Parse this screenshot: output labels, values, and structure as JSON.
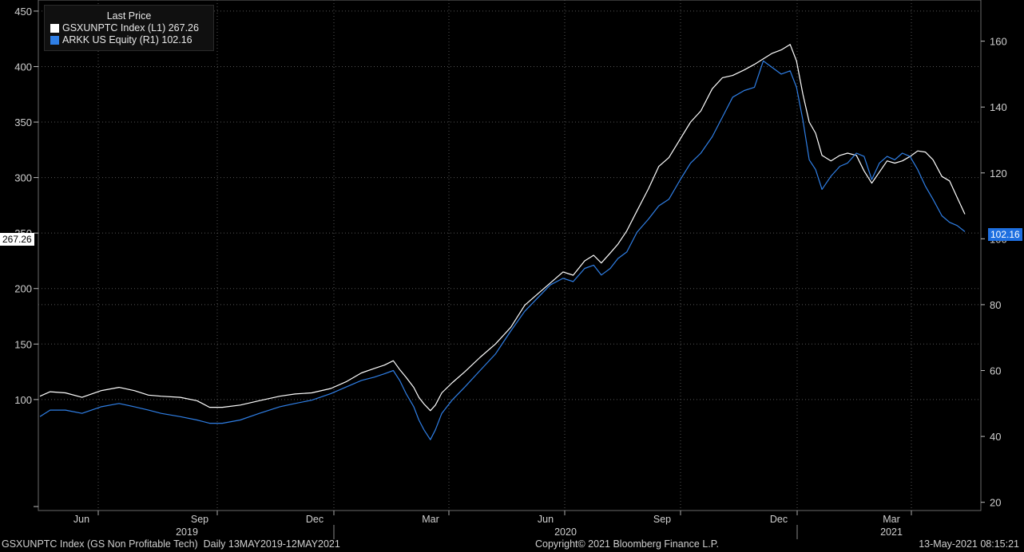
{
  "chart_data": {
    "type": "line",
    "title": "Last Price",
    "legend": [
      {
        "ticker": "GSXUNPTC Index",
        "axis": "(L1)",
        "last": "267.26",
        "color": "#ffffff"
      },
      {
        "ticker": "ARKK US Equity",
        "axis": "(R1)",
        "last": "102.16",
        "color": "#2f7fe6"
      }
    ],
    "left_axis": {
      "ylim": [
        0,
        460
      ],
      "ticks": [
        100,
        150,
        200,
        250,
        300,
        350,
        400,
        450
      ]
    },
    "right_axis": {
      "ylim": [
        17.5,
        172.5
      ],
      "ticks": [
        20,
        40,
        60,
        80,
        100,
        120,
        140,
        160
      ]
    },
    "x_months": [
      "Jun",
      "Sep",
      "Dec",
      "Mar",
      "Jun",
      "Sep",
      "Dec",
      "Mar"
    ],
    "x_years": [
      "2019",
      "2020",
      "2021"
    ],
    "last_value_labels": {
      "left": "267.26",
      "right": "102.16"
    },
    "series": [
      {
        "name": "GSXUNPTC Index",
        "axis": "left",
        "color": "#ffffff",
        "points": [
          [
            0,
            103
          ],
          [
            8,
            107
          ],
          [
            20,
            106
          ],
          [
            33,
            102
          ],
          [
            48,
            108
          ],
          [
            62,
            111
          ],
          [
            74,
            108
          ],
          [
            85,
            104
          ],
          [
            95,
            103
          ],
          [
            110,
            102
          ],
          [
            123,
            99
          ],
          [
            133,
            93
          ],
          [
            143,
            93
          ],
          [
            157,
            95
          ],
          [
            172,
            99
          ],
          [
            188,
            103
          ],
          [
            200,
            105
          ],
          [
            213,
            106
          ],
          [
            228,
            110
          ],
          [
            240,
            116
          ],
          [
            252,
            124
          ],
          [
            262,
            128
          ],
          [
            270,
            131
          ],
          [
            277,
            135
          ],
          [
            282,
            127
          ],
          [
            287,
            120
          ],
          [
            293,
            111
          ],
          [
            297,
            102
          ],
          [
            301,
            96
          ],
          [
            306,
            90
          ],
          [
            310,
            95
          ],
          [
            315,
            106
          ],
          [
            323,
            115
          ],
          [
            333,
            125
          ],
          [
            345,
            138
          ],
          [
            357,
            150
          ],
          [
            369,
            165
          ],
          [
            380,
            185
          ],
          [
            390,
            195
          ],
          [
            400,
            205
          ],
          [
            410,
            215
          ],
          [
            418,
            212
          ],
          [
            427,
            225
          ],
          [
            434,
            230
          ],
          [
            440,
            223
          ],
          [
            447,
            232
          ],
          [
            453,
            240
          ],
          [
            460,
            252
          ],
          [
            468,
            270
          ],
          [
            477,
            290
          ],
          [
            485,
            310
          ],
          [
            493,
            318
          ],
          [
            502,
            335
          ],
          [
            510,
            350
          ],
          [
            518,
            360
          ],
          [
            527,
            380
          ],
          [
            535,
            390
          ],
          [
            543,
            392
          ],
          [
            552,
            397
          ],
          [
            560,
            402
          ],
          [
            567,
            407
          ],
          [
            574,
            412
          ],
          [
            581,
            415
          ],
          [
            588,
            420
          ],
          [
            593,
            405
          ],
          [
            598,
            375
          ],
          [
            603,
            350
          ],
          [
            608,
            340
          ],
          [
            613,
            320
          ],
          [
            620,
            315
          ],
          [
            627,
            320
          ],
          [
            633,
            322
          ],
          [
            640,
            320
          ],
          [
            646,
            306
          ],
          [
            652,
            295
          ],
          [
            658,
            305
          ],
          [
            664,
            315
          ],
          [
            670,
            313
          ],
          [
            676,
            315
          ],
          [
            682,
            319
          ],
          [
            688,
            324
          ],
          [
            694,
            323
          ],
          [
            700,
            316
          ],
          [
            707,
            301
          ],
          [
            713,
            297
          ],
          [
            719,
            282
          ],
          [
            725,
            267
          ]
        ]
      },
      {
        "name": "ARKK US Equity",
        "axis": "right",
        "color": "#2f7fe6",
        "points": [
          [
            0,
            46
          ],
          [
            8,
            48
          ],
          [
            20,
            48
          ],
          [
            33,
            47
          ],
          [
            48,
            49
          ],
          [
            62,
            50
          ],
          [
            74,
            49
          ],
          [
            85,
            48
          ],
          [
            95,
            47
          ],
          [
            110,
            46
          ],
          [
            123,
            45
          ],
          [
            133,
            44
          ],
          [
            143,
            44
          ],
          [
            157,
            45
          ],
          [
            172,
            47
          ],
          [
            188,
            49
          ],
          [
            200,
            50
          ],
          [
            213,
            51
          ],
          [
            228,
            53
          ],
          [
            240,
            55
          ],
          [
            252,
            57
          ],
          [
            262,
            58
          ],
          [
            270,
            59
          ],
          [
            277,
            60
          ],
          [
            282,
            57
          ],
          [
            287,
            53
          ],
          [
            293,
            49
          ],
          [
            297,
            45
          ],
          [
            301,
            42
          ],
          [
            306,
            39
          ],
          [
            310,
            42
          ],
          [
            315,
            47
          ],
          [
            323,
            51
          ],
          [
            333,
            55
          ],
          [
            345,
            60
          ],
          [
            357,
            65
          ],
          [
            369,
            72
          ],
          [
            380,
            78
          ],
          [
            390,
            82
          ],
          [
            400,
            86
          ],
          [
            410,
            88
          ],
          [
            418,
            87
          ],
          [
            427,
            91
          ],
          [
            434,
            92
          ],
          [
            440,
            89
          ],
          [
            447,
            91
          ],
          [
            453,
            94
          ],
          [
            460,
            96
          ],
          [
            468,
            102
          ],
          [
            477,
            106
          ],
          [
            485,
            110
          ],
          [
            493,
            112
          ],
          [
            502,
            118
          ],
          [
            510,
            123
          ],
          [
            518,
            126
          ],
          [
            527,
            131
          ],
          [
            535,
            137
          ],
          [
            543,
            143
          ],
          [
            552,
            145
          ],
          [
            560,
            146
          ],
          [
            567,
            154
          ],
          [
            574,
            152
          ],
          [
            581,
            150
          ],
          [
            588,
            151
          ],
          [
            593,
            146
          ],
          [
            598,
            136
          ],
          [
            603,
            124
          ],
          [
            608,
            121
          ],
          [
            613,
            115
          ],
          [
            620,
            119
          ],
          [
            627,
            122
          ],
          [
            633,
            123
          ],
          [
            640,
            126
          ],
          [
            646,
            125
          ],
          [
            652,
            118
          ],
          [
            658,
            123
          ],
          [
            664,
            125
          ],
          [
            670,
            124
          ],
          [
            676,
            126
          ],
          [
            682,
            125
          ],
          [
            688,
            121
          ],
          [
            694,
            116
          ],
          [
            700,
            112
          ],
          [
            707,
            107
          ],
          [
            713,
            105
          ],
          [
            719,
            104
          ],
          [
            725,
            102.16
          ]
        ]
      }
    ]
  },
  "footer": {
    "left": "GSXUNPTC Index (GS Non Profitable Tech)  Daily 13MAY2019-12MAY2021",
    "center": "Copyright© 2021 Bloomberg Finance L.P.",
    "right": "13-May-2021 08:15:21"
  }
}
